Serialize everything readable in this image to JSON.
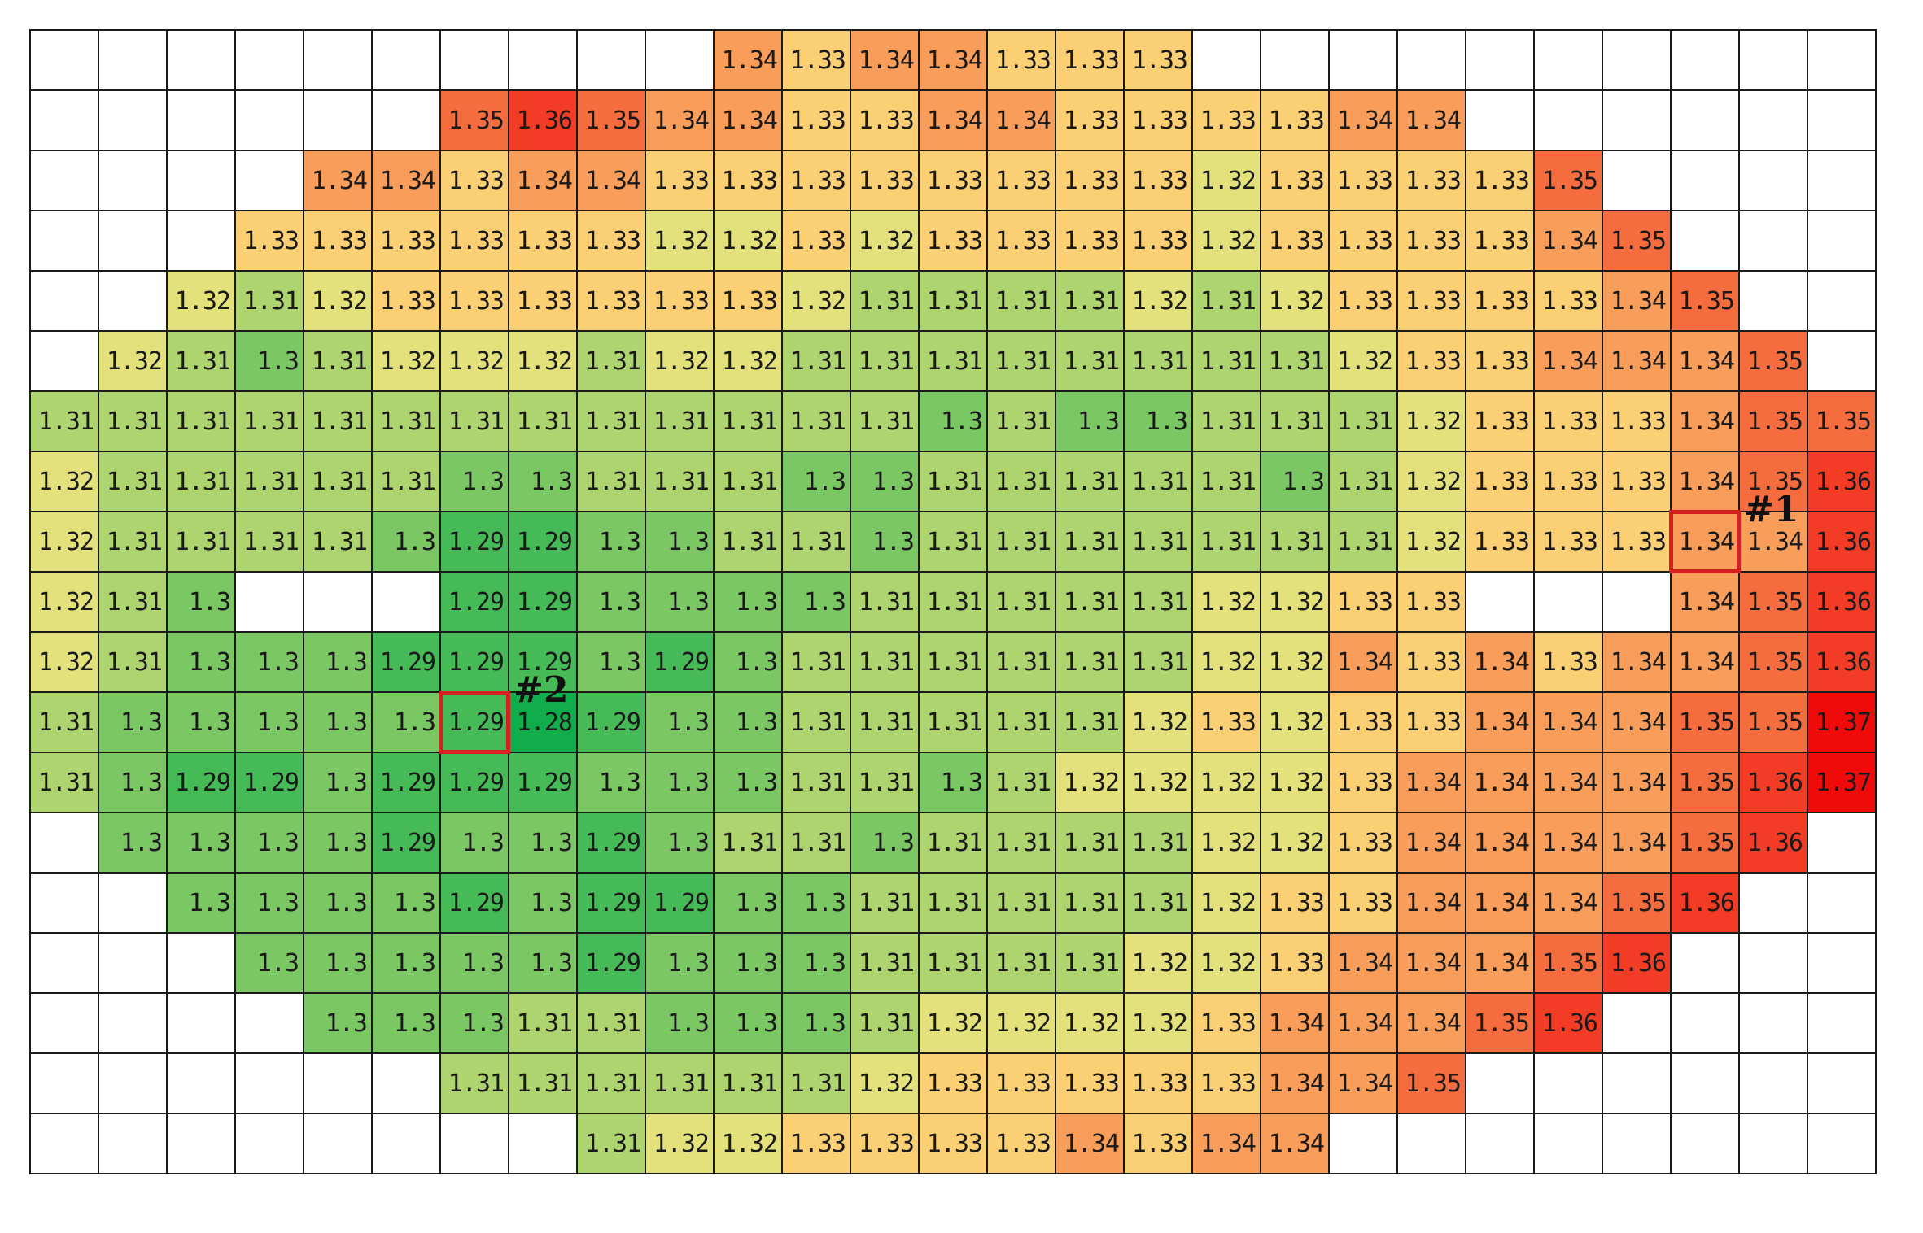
{
  "chart_data": {
    "type": "heatmap",
    "colors": {
      "low": "#12ad4b",
      "mid": "#fce881",
      "high": "#f00b0b",
      "empty": "#ffffff",
      "grid": "#1a1a1a",
      "marker": "#d61f1f"
    },
    "value_range": [
      1.28,
      1.37
    ],
    "rows": [
      [
        null,
        null,
        null,
        null,
        null,
        null,
        null,
        null,
        null,
        null,
        1.34,
        1.33,
        1.34,
        1.34,
        1.33,
        1.33,
        1.33,
        null,
        null,
        null,
        null,
        null,
        null,
        null,
        null,
        null,
        null
      ],
      [
        null,
        null,
        null,
        null,
        null,
        null,
        1.35,
        1.36,
        1.35,
        1.34,
        1.34,
        1.33,
        1.33,
        1.34,
        1.34,
        1.33,
        1.33,
        1.33,
        1.33,
        1.34,
        1.34,
        null,
        null,
        null,
        null,
        null,
        null
      ],
      [
        null,
        null,
        null,
        null,
        1.34,
        1.34,
        1.33,
        1.34,
        1.34,
        1.33,
        1.33,
        1.33,
        1.33,
        1.33,
        1.33,
        1.33,
        1.33,
        1.32,
        1.33,
        1.33,
        1.33,
        1.33,
        1.35,
        null,
        null,
        null,
        null
      ],
      [
        null,
        null,
        null,
        1.33,
        1.33,
        1.33,
        1.33,
        1.33,
        1.33,
        1.32,
        1.32,
        1.33,
        1.32,
        1.33,
        1.33,
        1.33,
        1.33,
        1.32,
        1.33,
        1.33,
        1.33,
        1.33,
        1.34,
        1.35,
        null,
        null,
        null
      ],
      [
        null,
        null,
        1.32,
        1.31,
        1.32,
        1.33,
        1.33,
        1.33,
        1.33,
        1.33,
        1.33,
        1.32,
        1.31,
        1.31,
        1.31,
        1.31,
        1.32,
        1.31,
        1.32,
        1.33,
        1.33,
        1.33,
        1.33,
        1.34,
        1.35,
        null,
        null
      ],
      [
        null,
        1.32,
        1.31,
        1.3,
        1.31,
        1.32,
        1.32,
        1.32,
        1.31,
        1.32,
        1.32,
        1.31,
        1.31,
        1.31,
        1.31,
        1.31,
        1.31,
        1.31,
        1.31,
        1.32,
        1.33,
        1.33,
        1.34,
        1.34,
        1.34,
        1.35,
        null
      ],
      [
        1.31,
        1.31,
        1.31,
        1.31,
        1.31,
        1.31,
        1.31,
        1.31,
        1.31,
        1.31,
        1.31,
        1.31,
        1.31,
        1.3,
        1.31,
        1.3,
        1.3,
        1.31,
        1.31,
        1.31,
        1.32,
        1.33,
        1.33,
        1.33,
        1.34,
        1.35,
        1.35
      ],
      [
        1.32,
        1.31,
        1.31,
        1.31,
        1.31,
        1.31,
        1.3,
        1.3,
        1.31,
        1.31,
        1.31,
        1.3,
        1.3,
        1.31,
        1.31,
        1.31,
        1.31,
        1.31,
        1.3,
        1.31,
        1.32,
        1.33,
        1.33,
        1.33,
        1.34,
        1.35,
        1.36
      ],
      [
        1.32,
        1.31,
        1.31,
        1.31,
        1.31,
        1.3,
        1.29,
        1.29,
        1.3,
        1.3,
        1.31,
        1.31,
        1.3,
        1.31,
        1.31,
        1.31,
        1.31,
        1.31,
        1.31,
        1.31,
        1.32,
        1.33,
        1.33,
        1.33,
        1.34,
        1.34,
        1.36
      ],
      [
        1.32,
        1.31,
        1.3,
        null,
        null,
        null,
        1.29,
        1.29,
        1.3,
        1.3,
        1.3,
        1.3,
        1.31,
        1.31,
        1.31,
        1.31,
        1.31,
        1.32,
        1.32,
        1.33,
        1.33,
        null,
        null,
        null,
        1.34,
        1.35,
        1.36
      ],
      [
        1.32,
        1.31,
        1.3,
        1.3,
        1.3,
        1.29,
        1.29,
        1.29,
        1.3,
        1.29,
        1.3,
        1.31,
        1.31,
        1.31,
        1.31,
        1.31,
        1.31,
        1.32,
        1.32,
        1.34,
        1.33,
        1.34,
        1.33,
        1.34,
        1.34,
        1.35,
        1.36
      ],
      [
        1.31,
        1.3,
        1.3,
        1.3,
        1.3,
        1.3,
        1.29,
        1.28,
        1.29,
        1.3,
        1.3,
        1.31,
        1.31,
        1.31,
        1.31,
        1.31,
        1.32,
        1.33,
        1.32,
        1.33,
        1.33,
        1.34,
        1.34,
        1.34,
        1.35,
        1.35,
        1.37
      ],
      [
        1.31,
        1.3,
        1.29,
        1.29,
        1.3,
        1.29,
        1.29,
        1.29,
        1.3,
        1.3,
        1.3,
        1.31,
        1.31,
        1.3,
        1.31,
        1.32,
        1.32,
        1.32,
        1.32,
        1.33,
        1.34,
        1.34,
        1.34,
        1.34,
        1.35,
        1.36,
        1.37
      ],
      [
        null,
        1.3,
        1.3,
        1.3,
        1.3,
        1.29,
        1.3,
        1.3,
        1.29,
        1.3,
        1.31,
        1.31,
        1.3,
        1.31,
        1.31,
        1.31,
        1.31,
        1.32,
        1.32,
        1.33,
        1.34,
        1.34,
        1.34,
        1.34,
        1.35,
        1.36,
        null
      ],
      [
        null,
        null,
        1.3,
        1.3,
        1.3,
        1.3,
        1.29,
        1.3,
        1.29,
        1.29,
        1.3,
        1.3,
        1.31,
        1.31,
        1.31,
        1.31,
        1.31,
        1.32,
        1.33,
        1.33,
        1.34,
        1.34,
        1.34,
        1.35,
        1.36,
        null,
        null
      ],
      [
        null,
        null,
        null,
        1.3,
        1.3,
        1.3,
        1.3,
        1.3,
        1.29,
        1.3,
        1.3,
        1.3,
        1.31,
        1.31,
        1.31,
        1.31,
        1.32,
        1.32,
        1.33,
        1.34,
        1.34,
        1.34,
        1.35,
        1.36,
        null,
        null,
        null
      ],
      [
        null,
        null,
        null,
        null,
        1.3,
        1.3,
        1.3,
        1.31,
        1.31,
        1.3,
        1.3,
        1.3,
        1.31,
        1.32,
        1.32,
        1.32,
        1.32,
        1.33,
        1.34,
        1.34,
        1.34,
        1.35,
        1.36,
        null,
        null,
        null,
        null
      ],
      [
        null,
        null,
        null,
        null,
        null,
        null,
        1.31,
        1.31,
        1.31,
        1.31,
        1.31,
        1.31,
        1.32,
        1.33,
        1.33,
        1.33,
        1.33,
        1.33,
        1.34,
        1.34,
        1.35,
        null,
        null,
        null,
        null,
        null,
        null
      ],
      [
        null,
        null,
        null,
        null,
        null,
        null,
        null,
        null,
        1.31,
        1.32,
        1.32,
        1.33,
        1.33,
        1.33,
        1.33,
        1.34,
        1.33,
        1.34,
        1.34,
        null,
        null,
        null,
        null,
        null,
        null,
        null,
        null
      ]
    ],
    "annotations": [
      {
        "label": "#1",
        "row": 8,
        "col": 24
      },
      {
        "label": "#2",
        "row": 11,
        "col": 6
      }
    ]
  }
}
